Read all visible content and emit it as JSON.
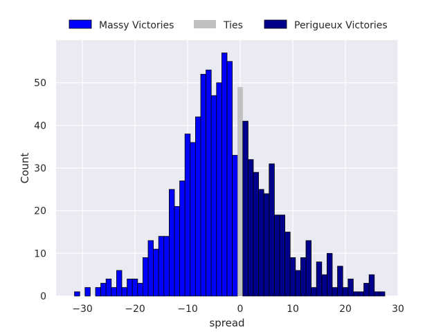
{
  "chart_data": {
    "type": "bar",
    "xlabel": "spread",
    "ylabel": "Count",
    "xlim": [
      -35,
      30
    ],
    "ylim": [
      0,
      60
    ],
    "xticks": [
      -30,
      -20,
      -10,
      0,
      10,
      20,
      30
    ],
    "yticks": [
      0,
      10,
      20,
      30,
      40,
      50
    ],
    "xtick_labels": [
      "−30",
      "−20",
      "−10",
      "0",
      "10",
      "20",
      "30"
    ],
    "ytick_labels": [
      "0",
      "10",
      "20",
      "30",
      "40",
      "50"
    ],
    "grid": true,
    "legend_position": "top-center",
    "series": [
      {
        "name": "Massy Victories",
        "color": "#0000ff",
        "x": [
          -31,
          -30,
          -29,
          -28,
          -27,
          -26,
          -25,
          -24,
          -23,
          -22,
          -21,
          -20,
          -19,
          -18,
          -17,
          -16,
          -15,
          -14,
          -13,
          -12,
          -11,
          -10,
          -9,
          -8,
          -7,
          -6,
          -5,
          -4,
          -3,
          -2,
          -1
        ],
        "values": [
          1,
          0,
          2,
          0,
          2,
          3,
          4,
          2,
          6,
          2,
          4,
          4,
          3,
          9,
          13,
          11,
          14,
          14,
          25,
          21,
          27,
          38,
          36,
          42,
          52,
          53,
          47,
          50,
          57,
          55,
          33
        ]
      },
      {
        "name": "Ties",
        "color": "#c0c0c0",
        "x": [
          0
        ],
        "values": [
          49
        ]
      },
      {
        "name": "Perigueux Victories",
        "color": "#00008b",
        "x": [
          1,
          2,
          3,
          4,
          5,
          6,
          7,
          8,
          9,
          10,
          11,
          12,
          13,
          14,
          15,
          16,
          17,
          18,
          19,
          20,
          21,
          22,
          23,
          24,
          25,
          26,
          27
        ],
        "values": [
          41,
          32,
          29,
          25,
          24,
          31,
          19,
          19,
          15,
          9,
          6,
          9,
          13,
          2,
          8,
          5,
          10,
          2,
          7,
          2,
          4,
          1,
          1,
          3,
          5,
          1,
          1
        ]
      }
    ]
  }
}
